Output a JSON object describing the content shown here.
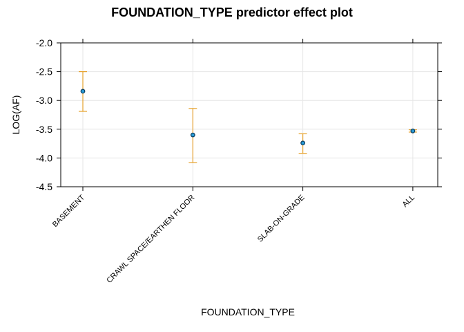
{
  "chart_data": {
    "type": "scatter",
    "title": "FOUNDATION_TYPE predictor effect plot",
    "xlabel": "FOUNDATION_TYPE",
    "ylabel": "LOG(AF)",
    "categories": [
      "BASEMENT",
      "CRAWL SPACE/EARTHEN FLOOR",
      "SLAB-ON-GRADE",
      "ALL"
    ],
    "estimate": [
      -2.84,
      -3.6,
      -3.74,
      -3.53
    ],
    "lower": [
      -3.19,
      -4.08,
      -3.92,
      -3.55
    ],
    "upper": [
      -2.5,
      -3.14,
      -3.58,
      -3.51
    ],
    "ylim": [
      -4.5,
      -2.0
    ],
    "yticks": [
      "-2.0",
      "-2.5",
      "-3.0",
      "-3.5",
      "-4.0",
      "-4.5"
    ],
    "grid": true,
    "colors": {
      "point_fill": "#2a9bd6",
      "point_stroke": "#0b3b5c",
      "error_bar": "#e6a12a",
      "grid": "#e6e6e6",
      "frame": "#000000"
    }
  }
}
